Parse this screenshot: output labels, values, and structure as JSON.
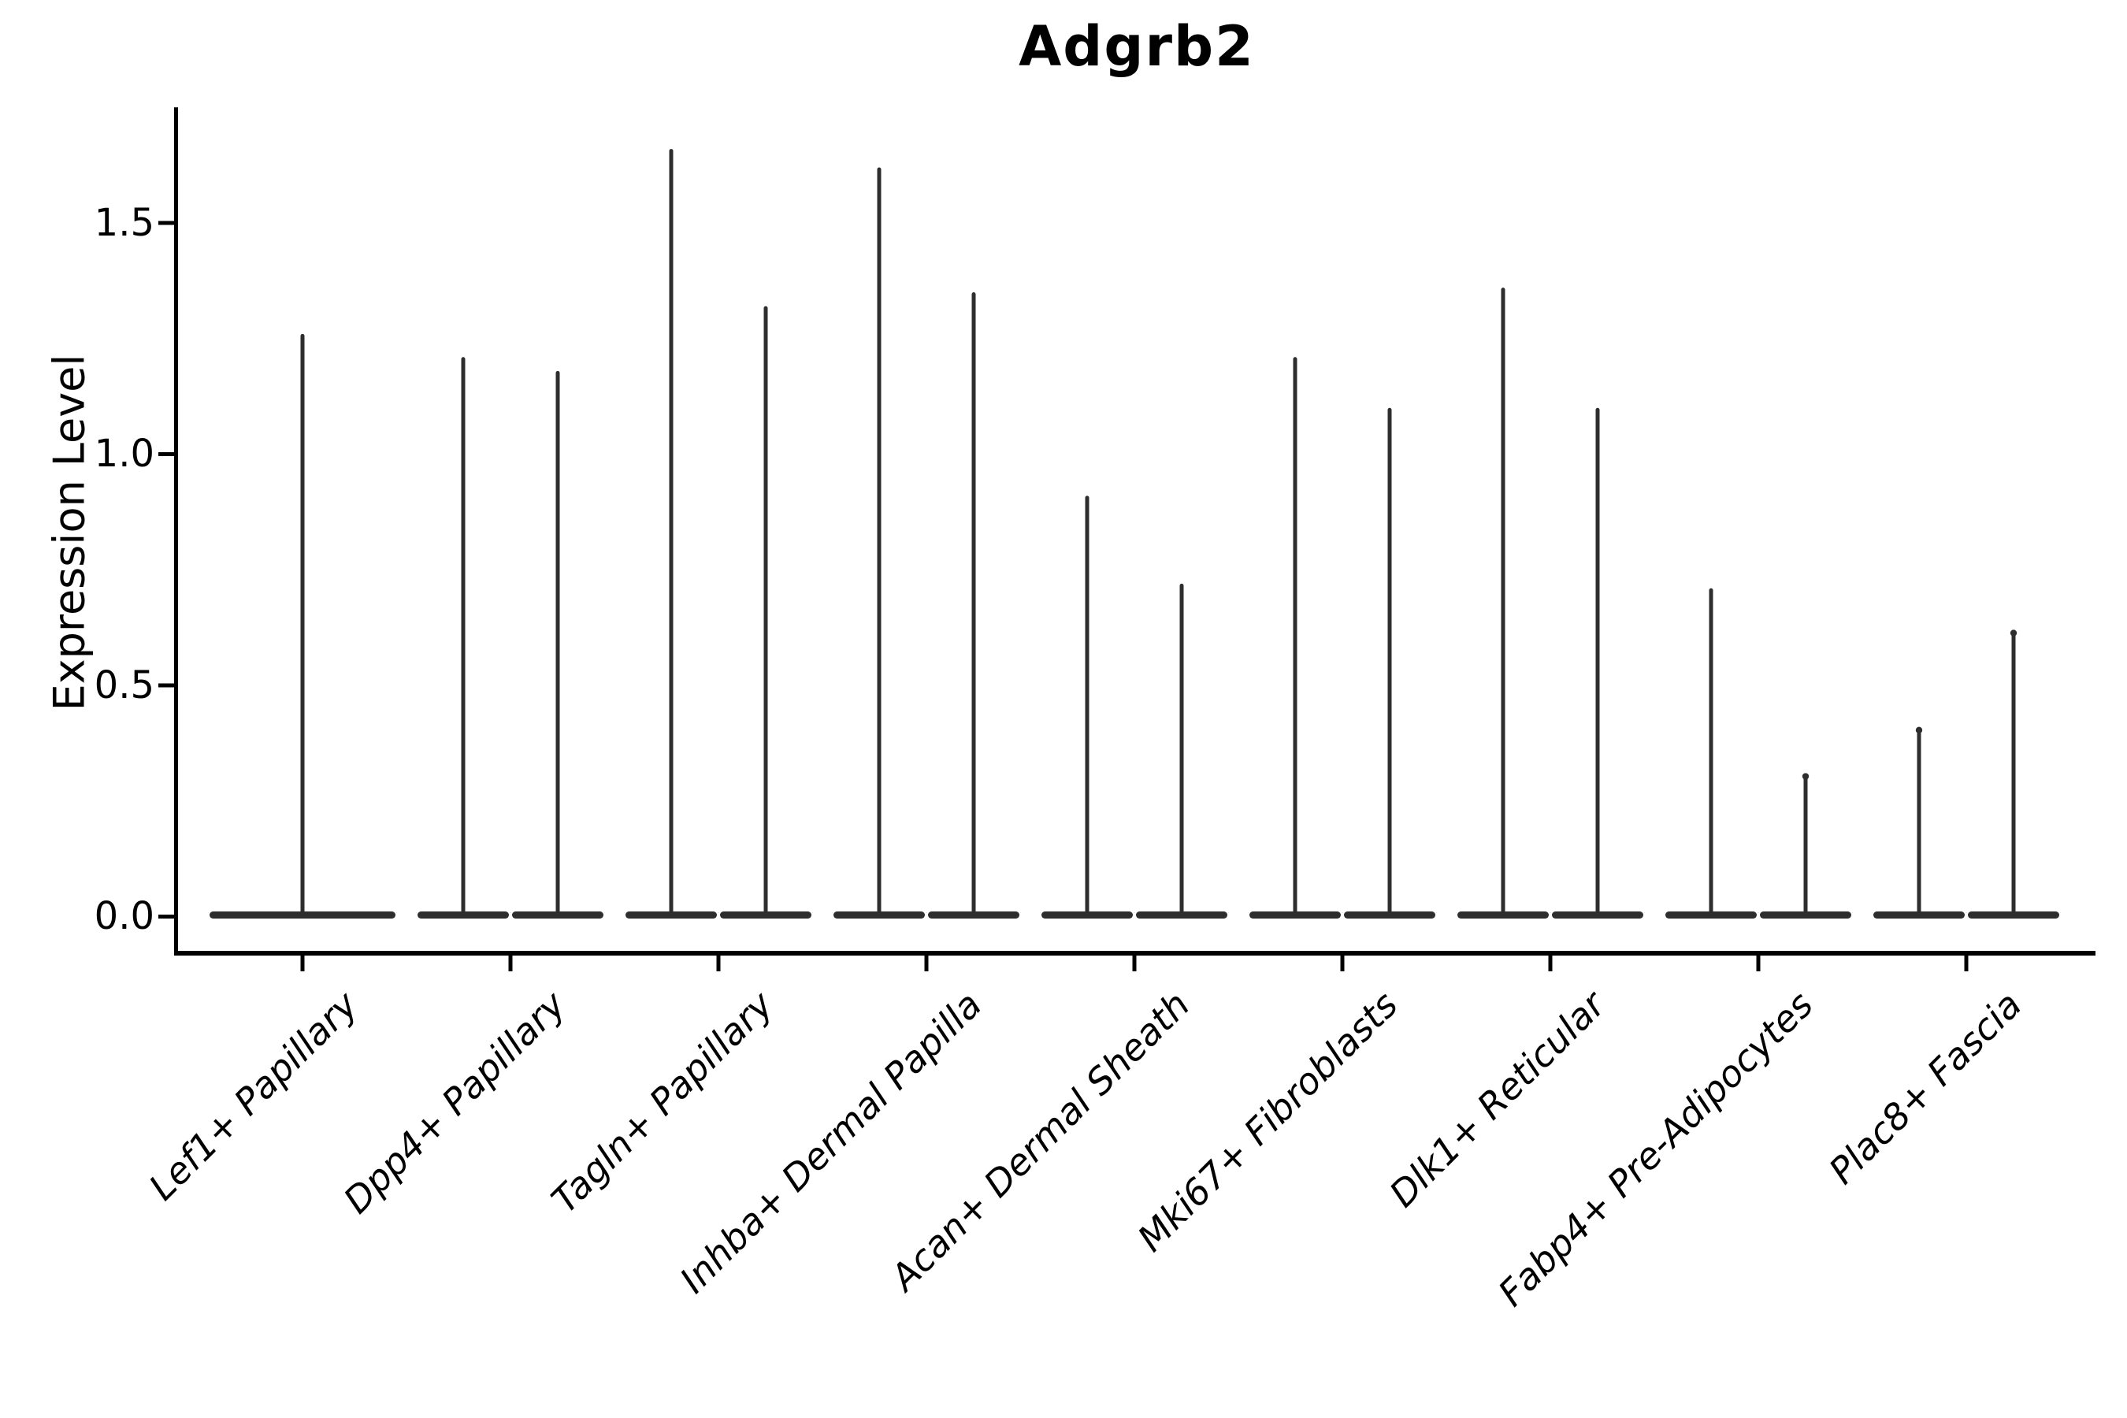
{
  "chart_data": {
    "type": "violin",
    "title": "Adgrb2",
    "ylabel": "Expression Level",
    "xlabel": "",
    "categories": [
      "Lef1+ Papillary",
      "Dpp4+ Papillary",
      "Tagln+ Papillary",
      "Inhba+ Dermal Papilla",
      "Acan+ Dermal Sheath",
      "Mki67+ Fibroblasts",
      "Dlk1+ Reticular",
      "Fabp4+ Pre-Adipocytes",
      "Plac8+ Fascia"
    ],
    "violins_per_category": [
      1,
      2,
      2,
      2,
      2,
      2,
      2,
      2,
      2
    ],
    "maxima": [
      [
        1.26
      ],
      [
        1.21,
        1.18
      ],
      [
        1.66,
        1.32
      ],
      [
        1.62,
        1.35
      ],
      [
        0.91,
        0.72
      ],
      [
        1.21,
        1.1
      ],
      [
        1.36,
        1.1
      ],
      [
        0.71,
        0.31
      ],
      [
        0.41,
        0.62
      ]
    ],
    "min_value": 0.0,
    "distribution_shape": "density concentrated at 0 with a thin spike up to each maximum",
    "yticks": [
      0.0,
      0.5,
      1.0,
      1.5
    ],
    "ytick_labels": [
      "0.0",
      "0.5",
      "1.0",
      "1.5"
    ],
    "ylim": [
      -0.08,
      1.75
    ],
    "grid": false,
    "legend": null,
    "violin_color": "#2e2e2e",
    "axis_color": "#000000",
    "background_color": "#ffffff"
  }
}
